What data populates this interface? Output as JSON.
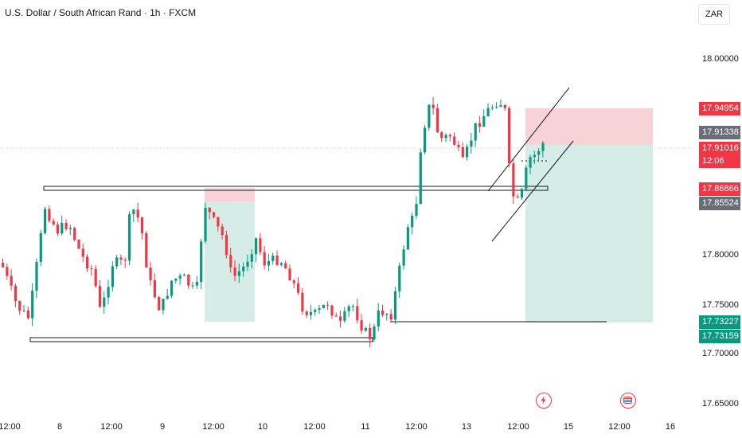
{
  "header": {
    "title": "U.S. Dollar / South African Rand · 1h · FXCM",
    "currency": "ZAR"
  },
  "price_axis": {
    "labels": [
      "18.00000",
      "17.80000",
      "17.75000",
      "17.70000",
      "17.65000"
    ]
  },
  "badges": {
    "target": "17.94954",
    "high_line": "17.91338",
    "current_price": "17.91016",
    "countdown": "12:06",
    "entry": "17.86866",
    "level": "17.85524",
    "support_a": "17.73227",
    "support_b": "17.73159"
  },
  "time_axis": {
    "labels": [
      "12:00",
      "8",
      "12:00",
      "9",
      "12:00",
      "10",
      "12:00",
      "11",
      "12:00",
      "13",
      "12:00",
      "15",
      "12:00",
      "16"
    ]
  },
  "events": [
    {
      "icon": "lightning-icon"
    },
    {
      "icon": "calendar-flag-icon"
    }
  ],
  "colors": {
    "up": "#089981",
    "down": "#f23645",
    "target_zone": "#f7d3d7",
    "stop_zone": "#d5ece7"
  }
}
